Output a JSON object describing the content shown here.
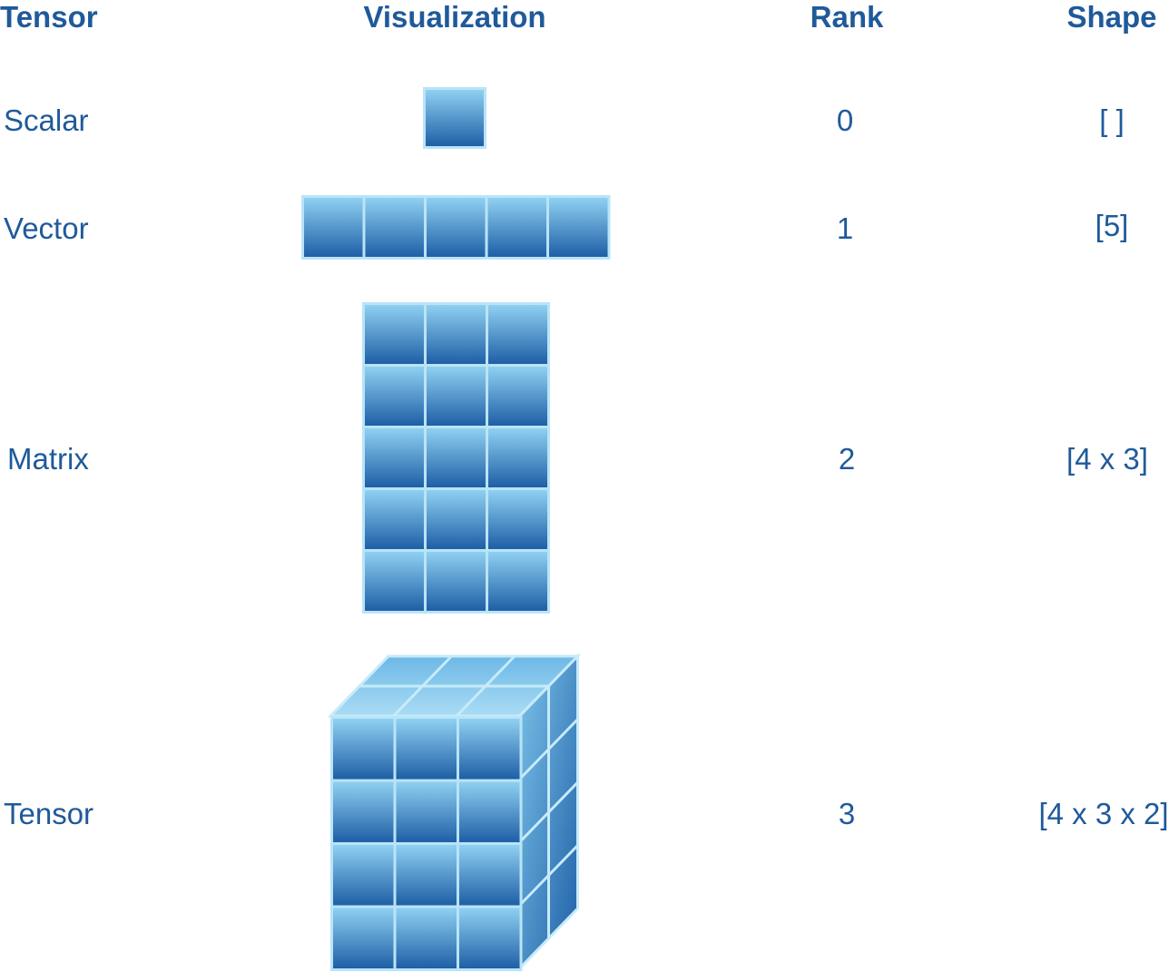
{
  "headers": {
    "tensor": "Tensor",
    "visualization": "Visualization",
    "rank": "Rank",
    "shape": "Shape"
  },
  "rows": [
    {
      "name": "Scalar",
      "rank": "0",
      "shape": "[ ]"
    },
    {
      "name": "Vector",
      "rank": "1",
      "shape": "[5]"
    },
    {
      "name": "Matrix",
      "rank": "2",
      "shape": "[4 x 3]"
    },
    {
      "name": "Tensor",
      "rank": "3",
      "shape": "[4 x 3 x 2]"
    }
  ],
  "colors": {
    "text": "#1f5a9a",
    "cell_top": "#8fd0f2",
    "cell_bottom": "#1e5fa6",
    "cell_border": "#b9e4f7"
  }
}
